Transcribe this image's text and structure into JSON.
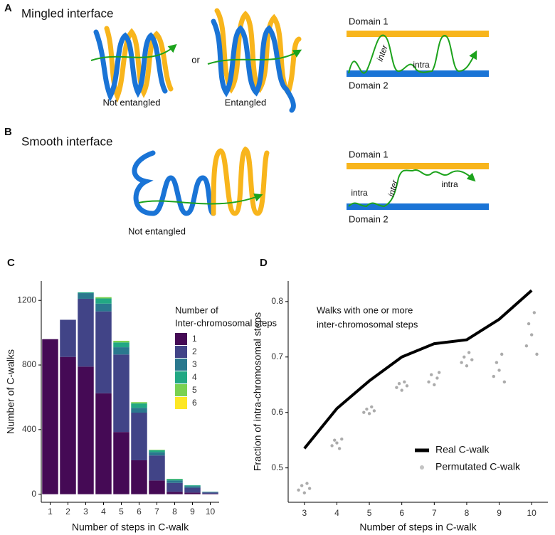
{
  "panel_a": {
    "letter": "A",
    "title": "Mingled interface",
    "caption_left": "Not entangled",
    "connector": "or",
    "caption_right": "Entangled",
    "domain_1": "Domain 1",
    "domain_2": "Domain 2",
    "label_inter": "inter",
    "label_intra": "intra"
  },
  "panel_b": {
    "letter": "B",
    "title": "Smooth interface",
    "caption": "Not entangled",
    "domain_1": "Domain 1",
    "domain_2": "Domain 2",
    "label_intra_left": "intra",
    "label_inter": "inter",
    "label_intra_right": "intra"
  },
  "chart_data": [
    {
      "panel_label": "C",
      "type": "stacked_bar",
      "x_label": "Number of steps in C-walk",
      "y_label": "Number of C-walks",
      "legend_title": [
        "Number of",
        "Inter-chromosomal steps"
      ],
      "categories": [
        "1",
        "2",
        "3",
        "4",
        "5",
        "6",
        "7",
        "8",
        "9",
        "10"
      ],
      "ylim": [
        -50,
        1320
      ],
      "yticks": [
        0,
        400,
        800,
        1200
      ],
      "series": [
        {
          "name": "1",
          "color": "#450a55",
          "values": [
            960,
            850,
            790,
            625,
            385,
            210,
            85,
            15,
            10,
            3
          ]
        },
        {
          "name": "2",
          "color": "#414487",
          "values": [
            0,
            230,
            420,
            507,
            480,
            295,
            155,
            55,
            30,
            8
          ]
        },
        {
          "name": "3",
          "color": "#2a788e",
          "values": [
            0,
            0,
            35,
            48,
            45,
            30,
            20,
            15,
            10,
            3
          ]
        },
        {
          "name": "4",
          "color": "#22a884",
          "values": [
            0,
            0,
            5,
            32,
            30,
            27,
            12,
            8,
            5,
            1
          ]
        },
        {
          "name": "5",
          "color": "#7ad151",
          "values": [
            0,
            0,
            0,
            8,
            10,
            8,
            3,
            2,
            0,
            0
          ]
        },
        {
          "name": "6",
          "color": "#fde725",
          "values": [
            0,
            0,
            0,
            0,
            0,
            0,
            0,
            0,
            0,
            0
          ]
        }
      ]
    },
    {
      "panel_label": "D",
      "type": "line_scatter",
      "x_label": "Number of steps in C-walk",
      "y_label": "Fraction of intra-chromosomal steps",
      "annotation": [
        "Walks with one or more",
        "inter-chromosomal steps"
      ],
      "xlim": [
        2.5,
        10.5
      ],
      "xticks": [
        3,
        4,
        5,
        6,
        7,
        8,
        9,
        10
      ],
      "ylim": [
        0.438,
        0.837
      ],
      "yticks": [
        0.5,
        0.6,
        0.7,
        0.8
      ],
      "series": [
        {
          "name": "Real C-walk",
          "kind": "line",
          "color": "#000000",
          "x": [
            3,
            4,
            5,
            6,
            7,
            8,
            9,
            10
          ],
          "values": [
            0.535,
            0.607,
            0.657,
            0.7,
            0.724,
            0.731,
            0.768,
            0.82
          ]
        },
        {
          "name": "Permutated C-walk",
          "kind": "scatter",
          "color": "#888888",
          "x": [
            2.82,
            2.92,
            3.0,
            3.08,
            3.16,
            3.85,
            3.93,
            4.0,
            4.08,
            4.15,
            4.83,
            4.92,
            5.0,
            5.07,
            5.15,
            5.84,
            5.92,
            6.0,
            6.08,
            6.16,
            6.83,
            6.91,
            7.0,
            7.09,
            7.15,
            7.84,
            7.92,
            8.0,
            8.07,
            8.16,
            8.83,
            8.92,
            9.0,
            9.08,
            9.16,
            9.84,
            9.91,
            10.0,
            10.08,
            10.16
          ],
          "values": [
            0.46,
            0.468,
            0.455,
            0.472,
            0.463,
            0.54,
            0.55,
            0.545,
            0.535,
            0.552,
            0.6,
            0.606,
            0.598,
            0.61,
            0.603,
            0.645,
            0.652,
            0.64,
            0.655,
            0.648,
            0.655,
            0.668,
            0.65,
            0.662,
            0.672,
            0.69,
            0.7,
            0.684,
            0.708,
            0.695,
            0.665,
            0.69,
            0.676,
            0.705,
            0.655,
            0.72,
            0.76,
            0.74,
            0.78,
            0.705
          ]
        }
      ]
    }
  ]
}
